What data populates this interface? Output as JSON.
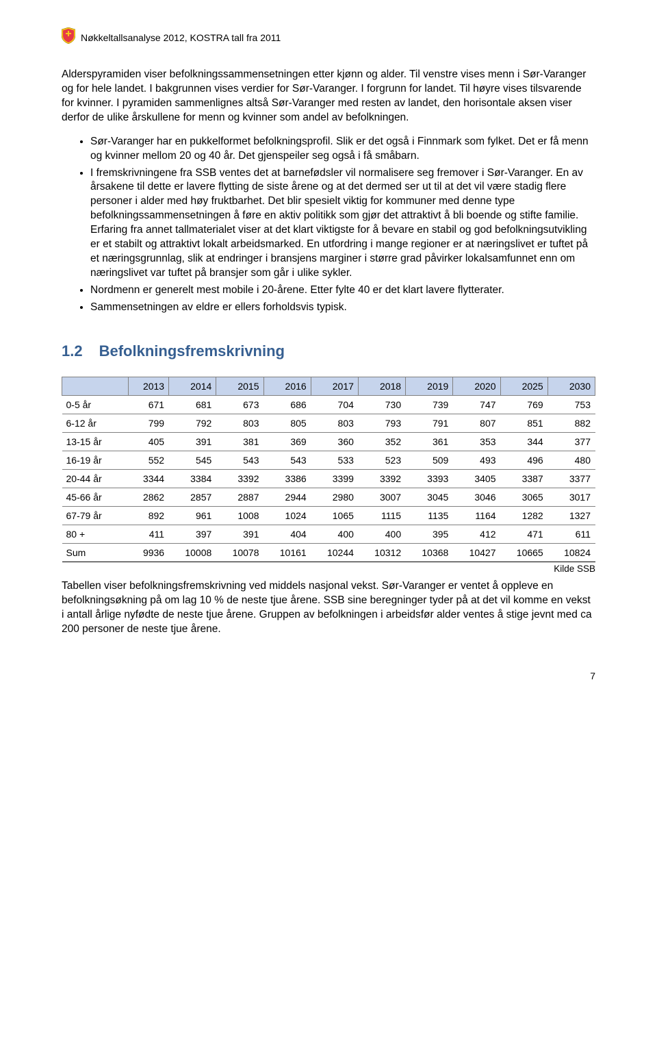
{
  "header": {
    "text": "Nøkkeltallsanalyse 2012, KOSTRA tall fra 2011"
  },
  "intro": {
    "p1": "Alderspyramiden viser befolkningssammensetningen etter kjønn og alder. Til venstre vises menn i Sør-Varanger og for hele landet. I bakgrunnen vises verdier for Sør-Varanger. I forgrunn for landet. Til høyre vises tilsvarende for kvinner. I pyramiden sammenlignes altså Sør-Varanger med resten av landet, den horisontale aksen viser derfor de ulike årskullene for menn og kvinner som andel av befolkningen."
  },
  "bullets": {
    "b1": "Sør-Varanger har en pukkelformet befolkningsprofil. Slik er det også i Finnmark som fylket. Det er få menn og kvinner mellom 20 og 40 år. Det gjenspeiler seg også i få småbarn.",
    "b2": "I fremskrivningene fra SSB ventes det at barnefødsler vil normalisere seg fremover i Sør-Varanger. En av årsakene til dette er lavere flytting de siste årene og at det dermed ser ut til at det vil være stadig flere personer i alder med høy fruktbarhet. Det blir spesielt viktig for kommuner med denne type befolkningssammensetningen å føre en aktiv politikk som gjør det attraktivt å bli boende og stifte familie. Erfaring fra annet tallmaterialet viser at det klart viktigste for å bevare en stabil og god befolkningsutvikling er et stabilt og attraktivt lokalt arbeidsmarked.  En utfordring i mange regioner er at næringslivet er tuftet på et næringsgrunnlag, slik at endringer i bransjens marginer i større grad påvirker lokalsamfunnet enn om næringslivet var tuftet på bransjer som går i ulike sykler.",
    "b3": "Nordmenn er generelt mest mobile i 20-årene. Etter fylte 40 er det klart lavere flytterater.",
    "b4": "Sammensetningen av eldre er ellers forholdsvis typisk."
  },
  "section": {
    "number": "1.2",
    "title": "Befolkningsfremskrivning"
  },
  "table": {
    "columns": [
      "2013",
      "2014",
      "2015",
      "2016",
      "2017",
      "2018",
      "2019",
      "2020",
      "2025",
      "2030"
    ],
    "rows": [
      {
        "label": "0-5 år",
        "vals": [
          "671",
          "681",
          "673",
          "686",
          "704",
          "730",
          "739",
          "747",
          "769",
          "753"
        ]
      },
      {
        "label": "6-12 år",
        "vals": [
          "799",
          "792",
          "803",
          "805",
          "803",
          "793",
          "791",
          "807",
          "851",
          "882"
        ]
      },
      {
        "label": "13-15 år",
        "vals": [
          "405",
          "391",
          "381",
          "369",
          "360",
          "352",
          "361",
          "353",
          "344",
          "377"
        ]
      },
      {
        "label": "16-19 år",
        "vals": [
          "552",
          "545",
          "543",
          "543",
          "533",
          "523",
          "509",
          "493",
          "496",
          "480"
        ]
      },
      {
        "label": "20-44 år",
        "vals": [
          "3344",
          "3384",
          "3392",
          "3386",
          "3399",
          "3392",
          "3393",
          "3405",
          "3387",
          "3377"
        ]
      },
      {
        "label": "45-66 år",
        "vals": [
          "2862",
          "2857",
          "2887",
          "2944",
          "2980",
          "3007",
          "3045",
          "3046",
          "3065",
          "3017"
        ]
      },
      {
        "label": "67-79 år",
        "vals": [
          "892",
          "961",
          "1008",
          "1024",
          "1065",
          "1115",
          "1135",
          "1164",
          "1282",
          "1327"
        ]
      },
      {
        "label": "80 +",
        "vals": [
          "411",
          "397",
          "391",
          "404",
          "400",
          "400",
          "395",
          "412",
          "471",
          "611"
        ]
      }
    ],
    "sum": {
      "label": "Sum",
      "vals": [
        "9936",
        "10008",
        "10078",
        "10161",
        "10244",
        "10312",
        "10368",
        "10427",
        "10665",
        "10824"
      ]
    }
  },
  "source": "Kilde SSB",
  "footer": {
    "p": "Tabellen viser befolkningsfremskrivning ved middels nasjonal vekst. Sør-Varanger er ventet å oppleve en befolkningsøkning på om lag 10 % de neste tjue årene.  SSB sine beregninger tyder på at det vil komme en vekst i antall årlige nyfødte de neste tjue årene. Gruppen av befolkningen i arbeidsfør alder ventes å stige jevnt med ca 200 personer de neste tjue årene."
  },
  "pageNumber": "7",
  "style": {
    "heading_color": "#365f91",
    "table_header_bg": "#c6d4ec",
    "table_border": "#808080"
  }
}
